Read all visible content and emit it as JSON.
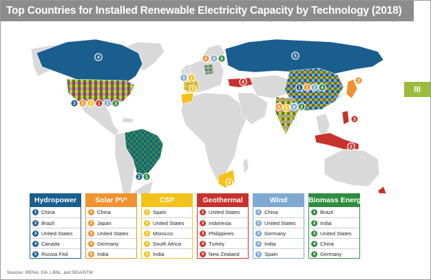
{
  "title": "Top Countries for Installed Renewable Electricity Capacity by Technology (2018)",
  "side_tab": "III",
  "sources": "Sources: IRENA, EIA, LBNL, and SEIA/GTM",
  "legends": [
    {
      "label": "Hydropower",
      "color": "#1a5e8e",
      "items": [
        "China",
        "Brazil",
        "United States",
        "Canada",
        "Russia Fed"
      ]
    },
    {
      "label": "Solar PV¹",
      "color": "#f0922e",
      "items": [
        "China",
        "Japan",
        "United States",
        "Germany",
        "India"
      ]
    },
    {
      "label": "CSP",
      "color": "#f2c21a",
      "items": [
        "Spain",
        "United States",
        "Morocco",
        "South Africa",
        "India"
      ]
    },
    {
      "label": "Geothermal",
      "color": "#c8322c",
      "items": [
        "United States",
        "Indonesia",
        "Philippines",
        "Turkey",
        "New Zealand"
      ]
    },
    {
      "label": "Wind",
      "color": "#7fa9d2",
      "items": [
        "China",
        "United States",
        "Germany",
        "India",
        "Spain"
      ]
    },
    {
      "label": "Biomass Energy",
      "color": "#2e8d3e",
      "items": [
        "Brazil",
        "India",
        "United States",
        "China",
        "Germany"
      ]
    }
  ],
  "ranks": [
    "1",
    "2",
    "3",
    "4",
    "5"
  ],
  "map_markers": [
    {
      "tech": "Hydropower",
      "country": "Canada",
      "rank": "4"
    },
    {
      "tech": "Hydropower",
      "country": "Russia Fed",
      "rank": "5"
    },
    {
      "tech": "Hydropower",
      "country": "Brazil",
      "rank": "2"
    },
    {
      "tech": "Biomass Energy",
      "country": "Brazil",
      "rank": "1"
    },
    {
      "tech": "Hydropower",
      "country": "United States",
      "rank": "3"
    },
    {
      "tech": "Solar PV",
      "country": "United States",
      "rank": "3"
    },
    {
      "tech": "CSP",
      "country": "United States",
      "rank": "2"
    },
    {
      "tech": "Geothermal",
      "country": "United States",
      "rank": "1"
    },
    {
      "tech": "Wind",
      "country": "United States",
      "rank": "2"
    },
    {
      "tech": "Biomass Energy",
      "country": "United States",
      "rank": "3"
    },
    {
      "tech": "Wind",
      "country": "Spain",
      "rank": "5"
    },
    {
      "tech": "CSP",
      "country": "Spain",
      "rank": "1"
    },
    {
      "tech": "CSP",
      "country": "Morocco",
      "rank": "3"
    },
    {
      "tech": "Solar PV",
      "country": "Germany",
      "rank": "4"
    },
    {
      "tech": "Wind",
      "country": "Germany",
      "rank": "3"
    },
    {
      "tech": "Biomass Energy",
      "country": "Germany",
      "rank": "5"
    },
    {
      "tech": "Geothermal",
      "country": "Turkey",
      "rank": "4"
    },
    {
      "tech": "Hydropower",
      "country": "China",
      "rank": "1"
    },
    {
      "tech": "Solar PV",
      "country": "China",
      "rank": "1"
    },
    {
      "tech": "Wind",
      "country": "China",
      "rank": "1"
    },
    {
      "tech": "Biomass Energy",
      "country": "China",
      "rank": "4"
    },
    {
      "tech": "Solar PV",
      "country": "India",
      "rank": "5"
    },
    {
      "tech": "CSP",
      "country": "India",
      "rank": "5"
    },
    {
      "tech": "Wind",
      "country": "India",
      "rank": "4"
    },
    {
      "tech": "Biomass Energy",
      "country": "India",
      "rank": "2"
    },
    {
      "tech": "Solar PV",
      "country": "Japan",
      "rank": "2"
    },
    {
      "tech": "Geothermal",
      "country": "Philippines",
      "rank": "3"
    },
    {
      "tech": "Geothermal",
      "country": "Indonesia",
      "rank": "2"
    },
    {
      "tech": "CSP",
      "country": "South Africa",
      "rank": "4"
    },
    {
      "tech": "Geothermal",
      "country": "New Zealand",
      "rank": "5"
    }
  ]
}
